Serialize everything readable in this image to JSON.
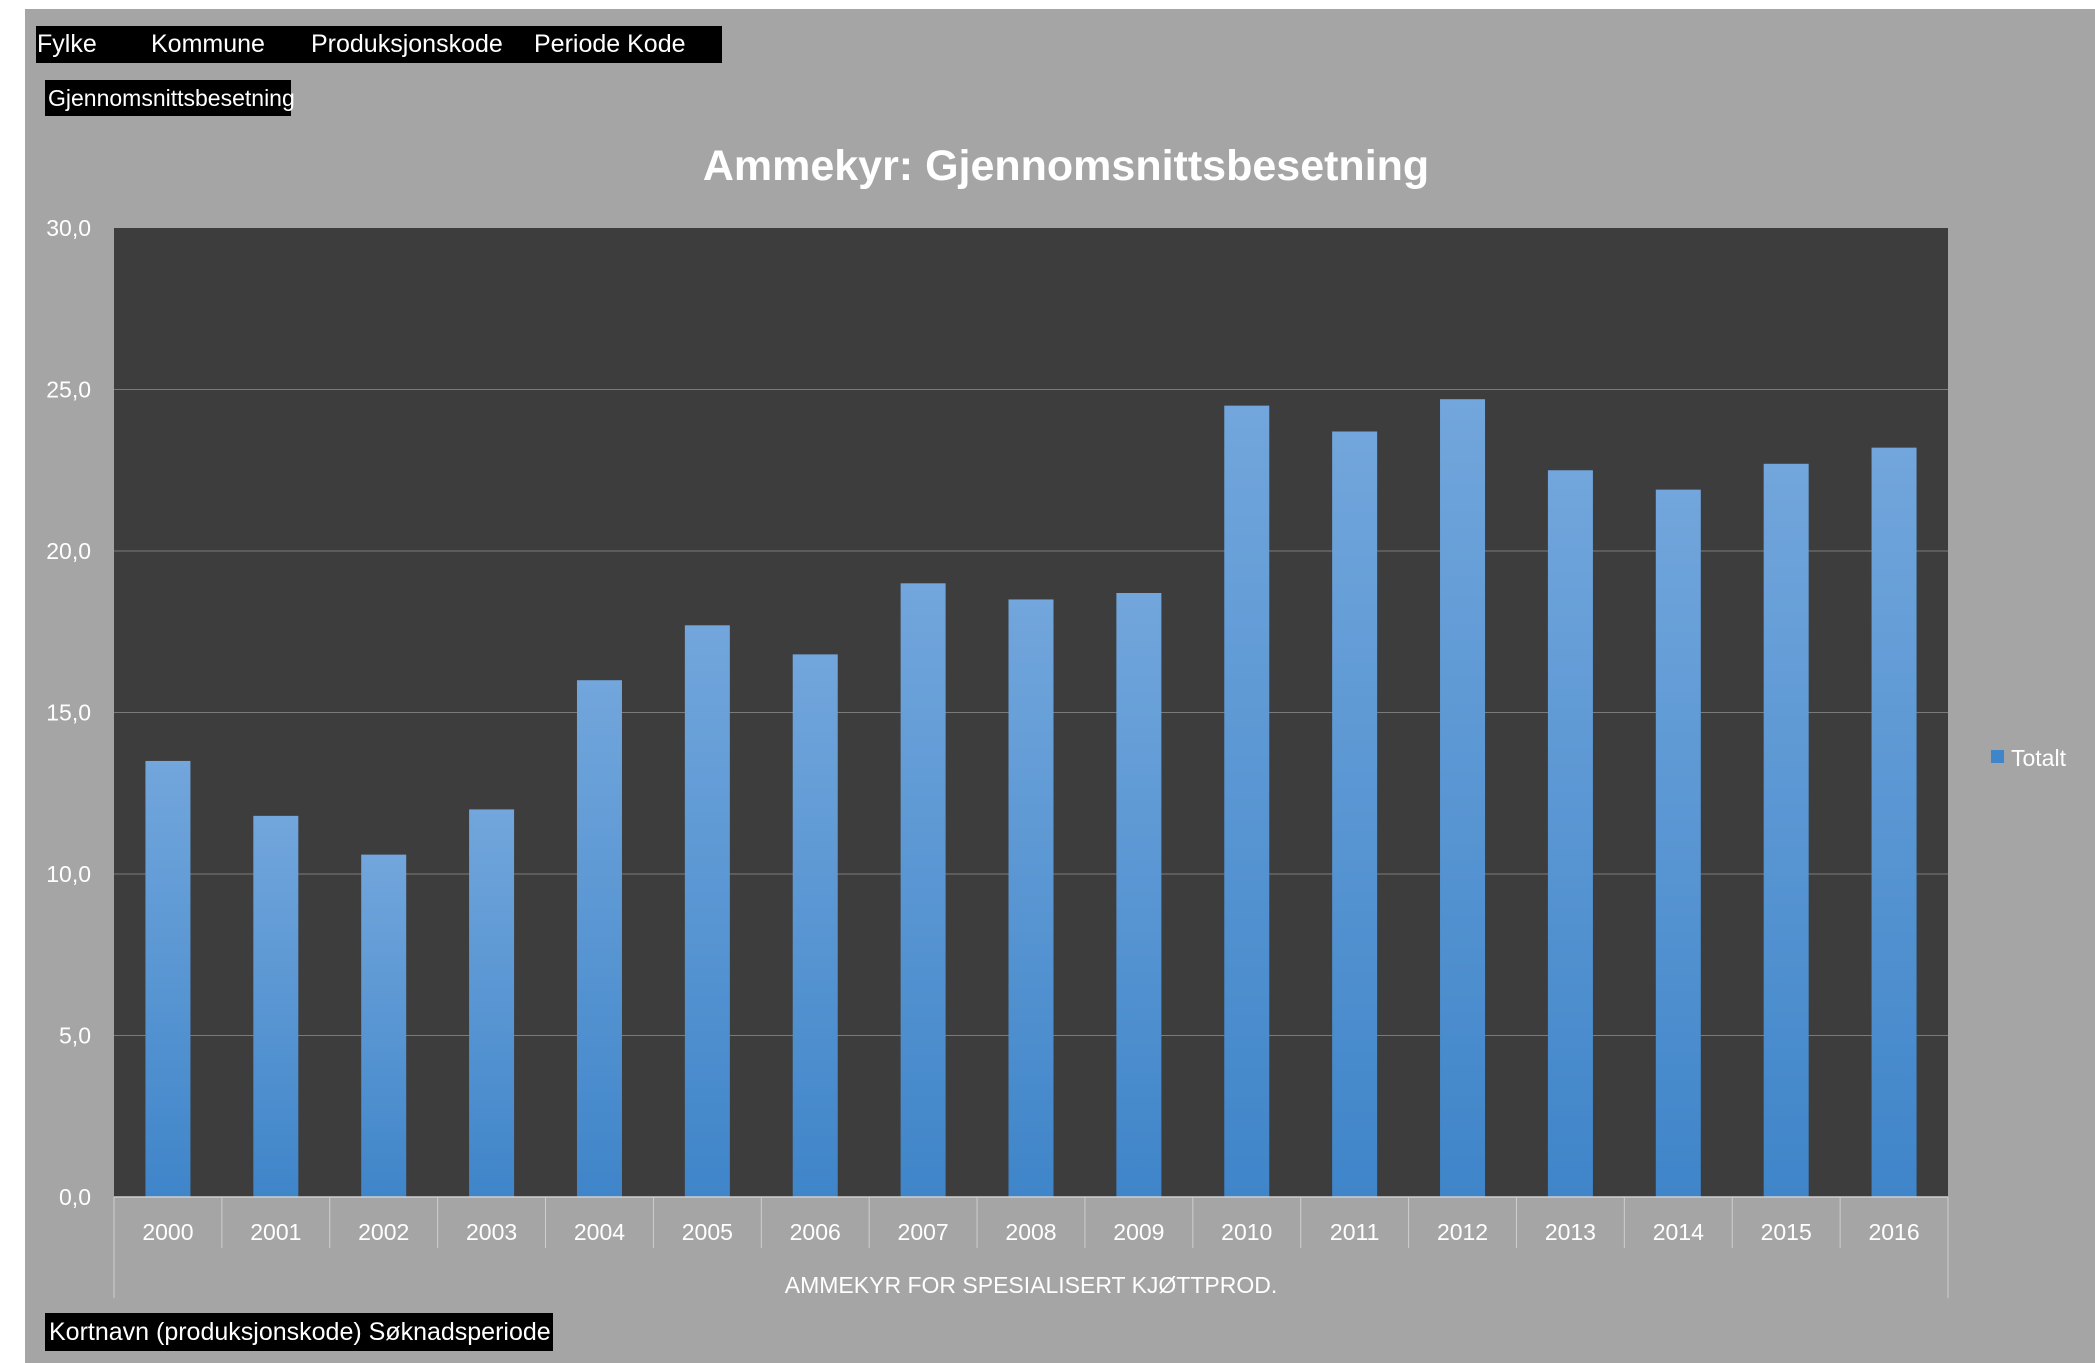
{
  "pivot": {
    "filters": [
      "Fylke",
      "Kommune",
      "Produksjonskode",
      "Periode Kode"
    ],
    "value_field": "Gjennomsnittsbesetning",
    "row_fields": "Kortnavn (produksjonskode) Søknadsperiode"
  },
  "colors": {
    "panel_background": "#a5a5a5",
    "plot_background": "#3d3d3d",
    "bar_top": "#72a6dc",
    "bar_bottom": "#3f85c9",
    "gridline": "#7a7a7a",
    "text": "#ffffff"
  },
  "chart_data": {
    "type": "bar",
    "title": "Ammekyr: Gjennomsnittsbesetning",
    "xlabel": "AMMEKYR FOR SPESIALISERT KJØTTPROD.",
    "ylabel": "",
    "categories": [
      "2000",
      "2001",
      "2002",
      "2003",
      "2004",
      "2005",
      "2006",
      "2007",
      "2008",
      "2009",
      "2010",
      "2011",
      "2012",
      "2013",
      "2014",
      "2015",
      "2016"
    ],
    "series": [
      {
        "name": "Totalt",
        "values": [
          13.5,
          11.8,
          10.6,
          12.0,
          16.0,
          17.7,
          16.8,
          19.0,
          18.5,
          18.7,
          24.5,
          23.7,
          24.7,
          22.5,
          21.9,
          22.7,
          23.2
        ]
      }
    ],
    "ylim": [
      0,
      30
    ],
    "yticks": [
      "0,0",
      "5,0",
      "10,0",
      "15,0",
      "20,0",
      "25,0",
      "30,0"
    ],
    "grid": true,
    "legend_position": "right"
  }
}
